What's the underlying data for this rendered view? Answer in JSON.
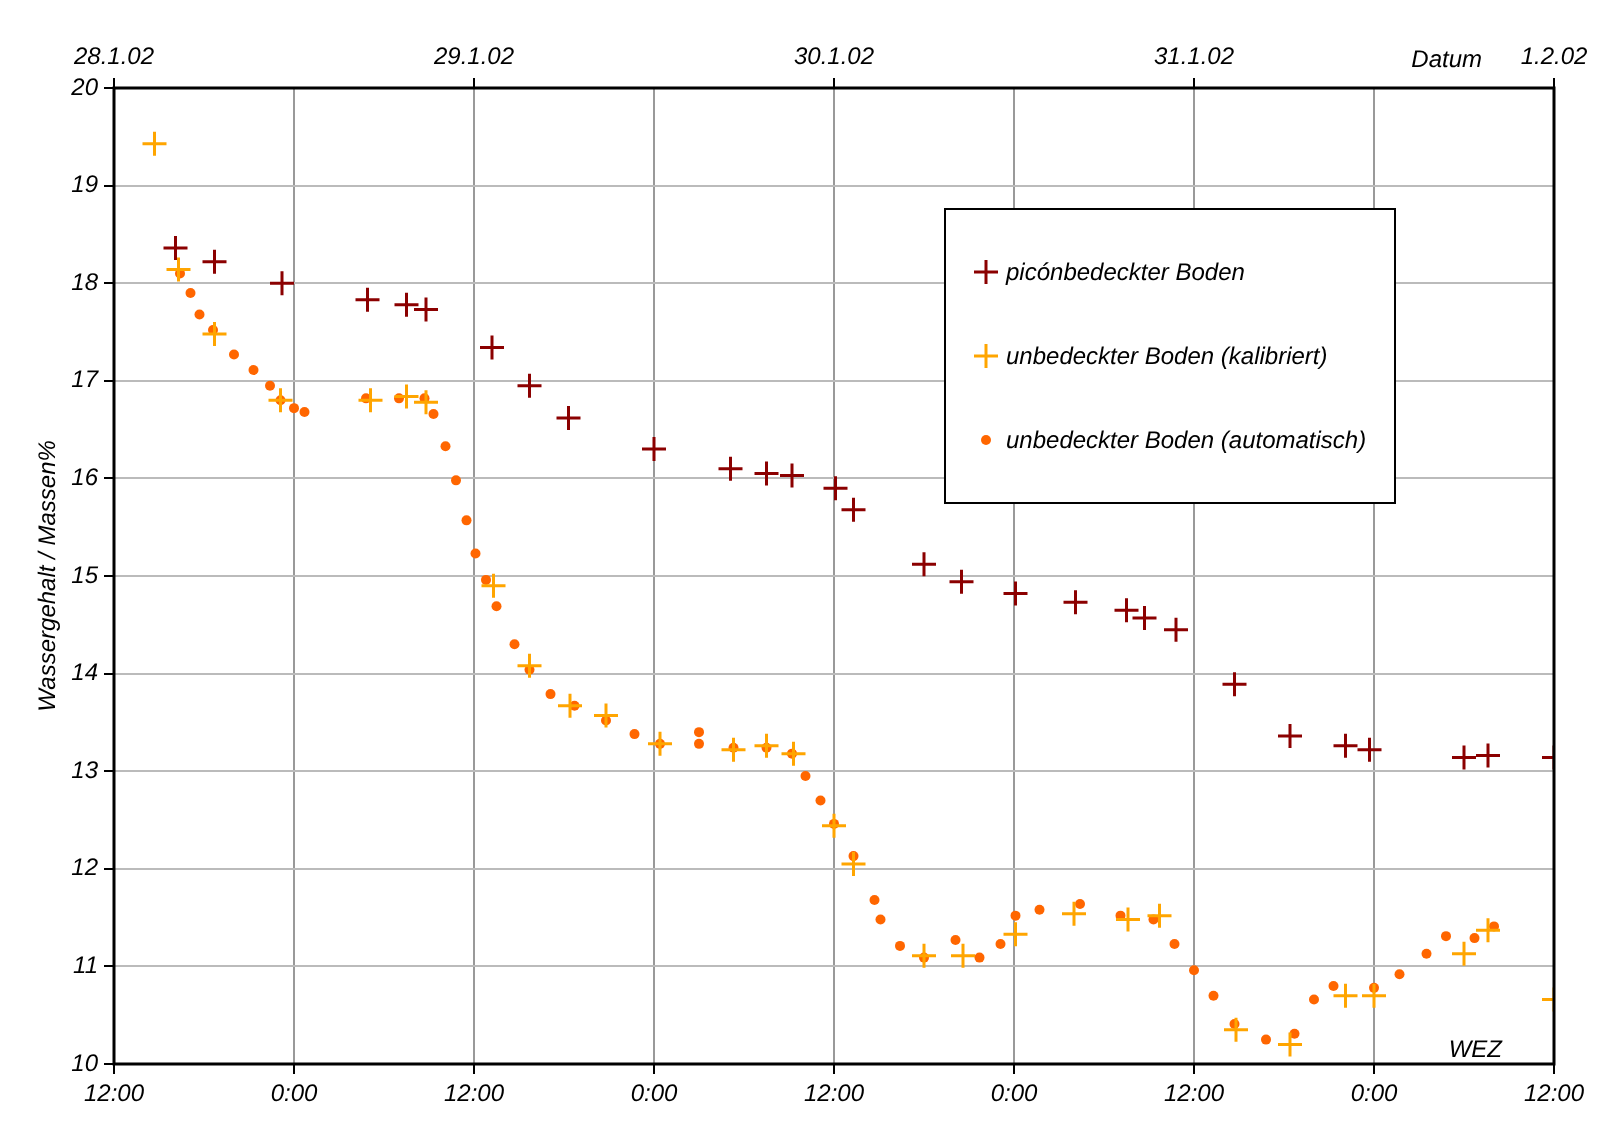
{
  "chart_data": {
    "type": "scatter",
    "xlabel": "WEZ",
    "x2label": "Datum",
    "ylabel": "Wassergehalt / Massen%",
    "xlim": [
      "--01-28T12:00",
      "--02-01T12:00"
    ],
    "ylim": [
      10,
      20
    ],
    "xticks": [
      {
        "value": "--01-28T12:00",
        "label": "12:00"
      },
      {
        "value": "--01-29T00:00",
        "label": "0:00"
      },
      {
        "value": "--01-29T12:00",
        "label": "12:00"
      },
      {
        "value": "--01-30T00:00",
        "label": "0:00"
      },
      {
        "value": "--01-30T12:00",
        "label": "12:00"
      },
      {
        "value": "--01-31T00:00",
        "label": "0:00"
      },
      {
        "value": "--01-31T12:00",
        "label": "12:00"
      },
      {
        "value": "--02-01T00:00",
        "label": "0:00"
      },
      {
        "value": "--02-01T12:00",
        "label": "12:00"
      }
    ],
    "x2lim": [
      "--01-28T12:00",
      "--02-01T12:00"
    ],
    "x2ticks": [
      {
        "value": "--01-28T12:00",
        "label": "28.1.02"
      },
      {
        "value": "--01-29T12:00",
        "label": "29.1.02"
      },
      {
        "value": "--01-30T12:00",
        "label": "30.1.02"
      },
      {
        "value": "--01-31T12:00",
        "label": "31.1.02"
      },
      {
        "value": "--02-01T12:00",
        "label": "1.2.02"
      }
    ],
    "yticks": [
      10,
      11,
      12,
      13,
      14,
      15,
      16,
      17,
      18,
      19,
      20
    ],
    "grid": true,
    "legend": "top right",
    "series": [
      {
        "name": "picónbedeckter Boden",
        "color": "#8b0000",
        "marker": "cross",
        "x": [
          "--01-28T16:06",
          "--01-28T18:42",
          "--01-28T23:12",
          "--01-29T04:54",
          "--01-29T07:30",
          "--01-29T08:48",
          "--01-29T13:12",
          "--01-29T15:42",
          "--01-29T18:18",
          "--01-30T00:00",
          "--01-30T05:06",
          "--01-30T07:30",
          "--01-30T09:12",
          "--01-30T12:06",
          "--01-30T13:18",
          "--01-30T18:00",
          "--01-30T20:30",
          "--01-31T00:06",
          "--01-31T04:06",
          "--01-31T07:30",
          "--01-31T08:42",
          "--01-31T10:48",
          "--01-31T14:42",
          "--01-31T18:24",
          "--01-31T22:06",
          "--01-31T23:42",
          "--02-01T06:00",
          "--02-01T07:36",
          "--02-01T12:00"
        ],
        "values": [
          18.36,
          18.22,
          18,
          17.83,
          17.78,
          17.73,
          17.34,
          16.95,
          16.62,
          16.3,
          16.1,
          16.05,
          16.03,
          15.9,
          15.68,
          15.12,
          14.94,
          14.82,
          14.73,
          14.65,
          14.57,
          14.45,
          13.89,
          13.36,
          13.26,
          13.22,
          13.14,
          13.16,
          13.14
        ]
      },
      {
        "name": "unbedeckter Boden (kalibriert)",
        "color": "#ffa500",
        "marker": "cross",
        "x": [
          "--01-28T14:42",
          "--01-28T16:18",
          "--01-28T18:42",
          "--01-28T23:06",
          "--01-29T05:06",
          "--01-29T07:30",
          "--01-29T08:48",
          "--01-29T13:18",
          "--01-29T15:42",
          "--01-29T18:24",
          "--01-29T20:48",
          "--01-30T00:24",
          "--01-30T05:18",
          "--01-30T07:30",
          "--01-30T09:18",
          "--01-30T12:00",
          "--01-30T13:18",
          "--01-30T18:00",
          "--01-30T20:36",
          "--01-31T00:06",
          "--01-31T04:00",
          "--01-31T07:36",
          "--01-31T09:42",
          "--01-31T14:48",
          "--01-31T18:24",
          "--01-31T22:06",
          "--02-01T00:00",
          "--02-01T06:00",
          "--02-01T07:36",
          "--02-01T12:00"
        ],
        "values": [
          19.43,
          18.14,
          17.48,
          16.8,
          16.8,
          16.84,
          16.78,
          14.9,
          14.08,
          13.67,
          13.57,
          13.28,
          13.22,
          13.26,
          13.18,
          12.44,
          12.05,
          11.11,
          11.11,
          11.33,
          11.54,
          11.48,
          11.52,
          10.35,
          10.2,
          10.7,
          10.7,
          11.13,
          11.37,
          10.66
        ]
      },
      {
        "name": "unbedeckter Boden (automatisch)",
        "color": "#ff6600",
        "marker": "circle",
        "x": [
          "--01-28T16:24",
          "--01-28T17:06",
          "--01-28T17:42",
          "--01-28T18:36",
          "--01-28T20:00",
          "--01-28T21:18",
          "--01-28T22:24",
          "--01-28T23:06",
          "--01-29T00:00",
          "--01-29T00:42",
          "--01-29T04:48",
          "--01-29T07:00",
          "--01-29T08:42",
          "--01-29T09:18",
          "--01-29T10:06",
          "--01-29T10:48",
          "--01-29T11:30",
          "--01-29T12:06",
          "--01-29T12:48",
          "--01-29T13:30",
          "--01-29T14:42",
          "--01-29T15:42",
          "--01-29T17:06",
          "--01-29T18:42",
          "--01-29T20:48",
          "--01-29T22:42",
          "--01-30T00:24",
          "--01-30T03:00",
          "--01-30T03:00",
          "--01-30T05:18",
          "--01-30T07:30",
          "--01-30T09:12",
          "--01-30T10:06",
          "--01-30T11:06",
          "--01-30T12:00",
          "--01-30T13:18",
          "--01-30T14:42",
          "--01-30T15:06",
          "--01-30T16:24",
          "--01-30T18:00",
          "--01-30T20:06",
          "--01-30T21:42",
          "--01-30T23:06",
          "--01-31T00:06",
          "--01-31T01:42",
          "--01-31T04:24",
          "--01-31T07:06",
          "--01-31T09:18",
          "--01-31T10:42",
          "--01-31T12:00",
          "--01-31T13:18",
          "--01-31T14:42",
          "--01-31T16:48",
          "--01-31T18:42",
          "--01-31T20:00",
          "--01-31T21:18",
          "--02-01T00:00",
          "--02-01T01:42",
          "--02-01T03:30",
          "--02-01T04:48",
          "--02-01T06:42",
          "--02-01T08:00"
        ],
        "values": [
          18.1,
          17.9,
          17.68,
          17.52,
          17.27,
          17.11,
          16.95,
          16.8,
          16.72,
          16.68,
          16.82,
          16.82,
          16.82,
          16.66,
          16.33,
          15.98,
          15.57,
          15.23,
          14.96,
          14.69,
          14.3,
          14.04,
          13.79,
          13.67,
          13.52,
          13.38,
          13.28,
          13.28,
          13.4,
          13.24,
          13.24,
          13.18,
          12.95,
          12.7,
          12.46,
          12.13,
          11.68,
          11.48,
          11.21,
          11.09,
          11.27,
          11.09,
          11.23,
          11.52,
          11.58,
          11.64,
          11.52,
          11.48,
          11.23,
          10.96,
          10.7,
          10.41,
          10.25,
          10.31,
          10.66,
          10.8,
          10.78,
          10.92,
          11.13,
          11.31,
          11.29,
          11.41
        ]
      }
    ]
  }
}
